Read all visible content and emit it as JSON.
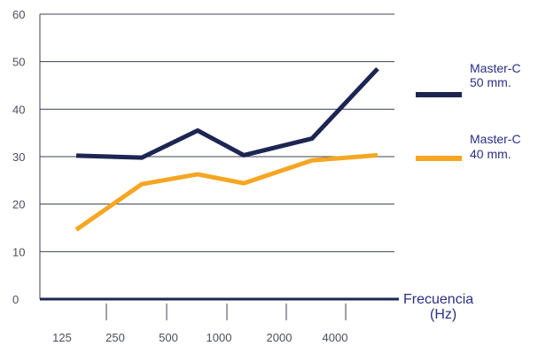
{
  "chart_data": {
    "type": "line",
    "xlabel_line1": "Frecuencia",
    "xlabel_line2": "(Hz)",
    "ylabel": "",
    "ylim": [
      0,
      60
    ],
    "yticks": [
      0,
      10,
      20,
      30,
      40,
      50,
      60
    ],
    "x_tick_labels": [
      "125",
      "250",
      "500",
      "1000",
      "2000",
      "4000"
    ],
    "grid": "horizontal",
    "legend_position": "right",
    "series": [
      {
        "name_line1": "Master-C",
        "name_line2": "50 mm.",
        "color": "#1d2553",
        "values": [
          30.2,
          29.8,
          35.5,
          30.3,
          33.8,
          48.5
        ]
      },
      {
        "name_line1": "Master-C",
        "name_line2": "40 mm.",
        "color": "#f5a623",
        "values": [
          14.6,
          24.2,
          26.3,
          24.4,
          29.2,
          30.3
        ]
      }
    ]
  }
}
